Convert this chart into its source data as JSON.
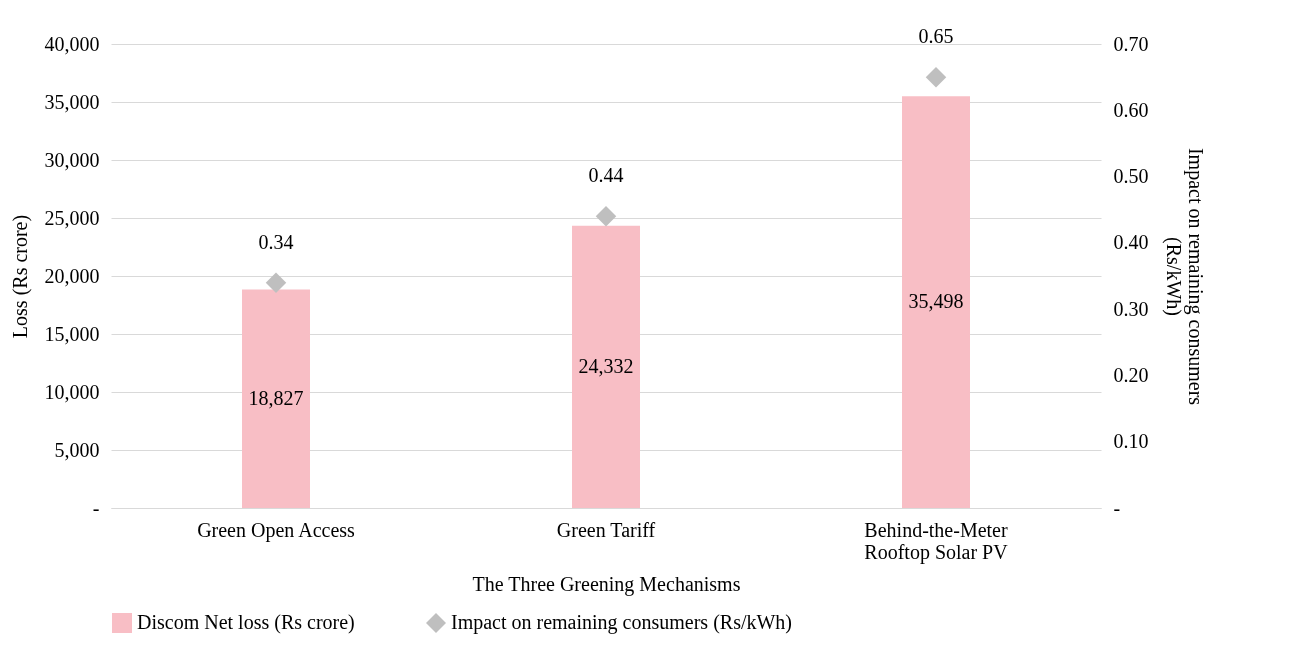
{
  "chart_data": {
    "type": "bar",
    "xlabel": "The Three Greening Mechanisms",
    "ylabel": "Loss (Rs crore)",
    "y2label": "Impact on remaining consumers (Rs/kWh)",
    "categories": [
      "Green Open Access",
      "Green Tariff",
      "Behind-the-Meter Rooftop Solar PV"
    ],
    "series": [
      {
        "name": "Discom Net loss (Rs crore)",
        "color": "#f8bec5",
        "values": [
          18827,
          24332,
          35498
        ],
        "value_labels": [
          "18,827",
          "24,332",
          "35,498"
        ]
      },
      {
        "name": "Impact on remaining consumers (Rs/kWh)",
        "type": "scatter",
        "axis": "y2",
        "marker": "diamond",
        "color": "#bfbfbf",
        "values": [
          0.34,
          0.44,
          0.65
        ],
        "value_labels": [
          "0.34",
          "0.44",
          "0.65"
        ]
      }
    ],
    "ylim": [
      0,
      40000
    ],
    "yticks": [
      {
        "value": 0,
        "label": "-"
      },
      {
        "value": 5000,
        "label": "5,000"
      },
      {
        "value": 10000,
        "label": "10,000"
      },
      {
        "value": 15000,
        "label": "15,000"
      },
      {
        "value": 20000,
        "label": "20,000"
      },
      {
        "value": 25000,
        "label": "25,000"
      },
      {
        "value": 30000,
        "label": "30,000"
      },
      {
        "value": 35000,
        "label": "35,000"
      },
      {
        "value": 40000,
        "label": "40,000"
      }
    ],
    "y2lim": [
      0,
      0.7
    ],
    "y2ticks": [
      {
        "value": 0,
        "label": "-"
      },
      {
        "value": 0.1,
        "label": "0.10"
      },
      {
        "value": 0.2,
        "label": "0.20"
      },
      {
        "value": 0.3,
        "label": "0.30"
      },
      {
        "value": 0.4,
        "label": "0.40"
      },
      {
        "value": 0.5,
        "label": "0.50"
      },
      {
        "value": 0.6,
        "label": "0.60"
      },
      {
        "value": 0.7,
        "label": "0.70"
      }
    ],
    "grid": "y",
    "legend": "bottom"
  }
}
